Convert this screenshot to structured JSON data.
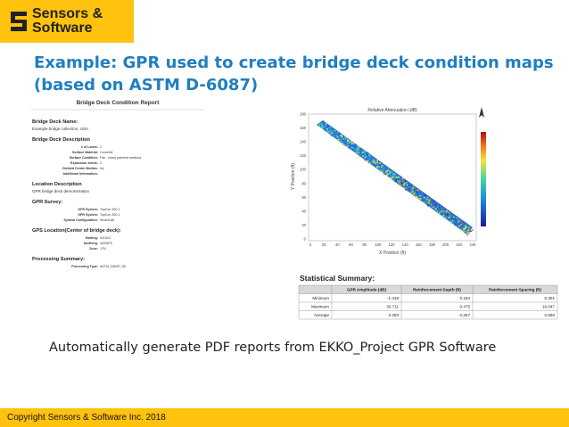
{
  "logo": {
    "line1": "Sensors &",
    "line2": "Software"
  },
  "title": "Example: GPR used to create bridge deck condition maps (based on ASTM D-6087)",
  "report": {
    "heading": "Bridge Deck Condition Report",
    "sections": [
      {
        "title": "Bridge Deck Name:",
        "note": "Example bridge collection, USA"
      },
      {
        "title": "Bridge Deck Description",
        "fields": [
          {
            "label": "# of Lanes:",
            "value": "2"
          },
          {
            "label": "Surface Material:",
            "value": "Concrete"
          },
          {
            "label": "Surface Condition:",
            "value": "Fair - many patched sections"
          },
          {
            "label": "Expansion Joints:",
            "value": "2"
          },
          {
            "label": "Divided Center Median:",
            "value": "No"
          },
          {
            "label": "Additional Information:"
          }
        ]
      },
      {
        "title": "Location Description",
        "note": "GPR bridge deck demonstration"
      },
      {
        "title": "GPR Survey:",
        "fields": [
          {
            "label": "GPS System:",
            "value": "TopCon 300-1"
          },
          {
            "label": "GPR System:",
            "value": "TopCon 300-1"
          },
          {
            "label": "System Configuration:",
            "value": "SmartCart"
          }
        ]
      },
      {
        "title": "GPS Location(Center of bridge deck):",
        "fields": [
          {
            "label": "Easting:",
            "value": "411024"
          },
          {
            "label": "Northing:",
            "value": "4420870"
          },
          {
            "label": "Zone:",
            "value": "17N"
          }
        ]
      },
      {
        "title": "Processing Summary:",
        "fields": [
          {
            "label": "Processing Type:",
            "value": "ASTM_D6087_08"
          }
        ]
      }
    ]
  },
  "map": {
    "title": "Relative Attenuation (dB)",
    "ylabel": "Y Position (ft)",
    "xlabel": "X Position (ft)",
    "yticks": [
      "0",
      "20",
      "40",
      "60",
      "80",
      "100",
      "120",
      "140",
      "160",
      "180"
    ],
    "xticks": [
      "0",
      "20",
      "40",
      "60",
      "80",
      "100",
      "120",
      "140",
      "160",
      "180",
      "200",
      "220",
      "240"
    ]
  },
  "stats": {
    "title": "Statistical Summary:",
    "header": [
      "GPR Amplitude (dB)",
      "Reinforcement Depth (ft)",
      "Reinforcement Spacing (ft)"
    ],
    "rows": [
      [
        "Minimum",
        "-1.418",
        "0.184",
        "0.301"
      ],
      [
        "Maximum",
        "30.711",
        "0.475",
        "10.047"
      ],
      [
        "Average",
        "3.260",
        "0.257",
        "0.560"
      ]
    ]
  },
  "body": "Automatically generate PDF reports from EKKO_Project GPR Software",
  "footer": "Copyright Sensors & Software Inc. 2018"
}
